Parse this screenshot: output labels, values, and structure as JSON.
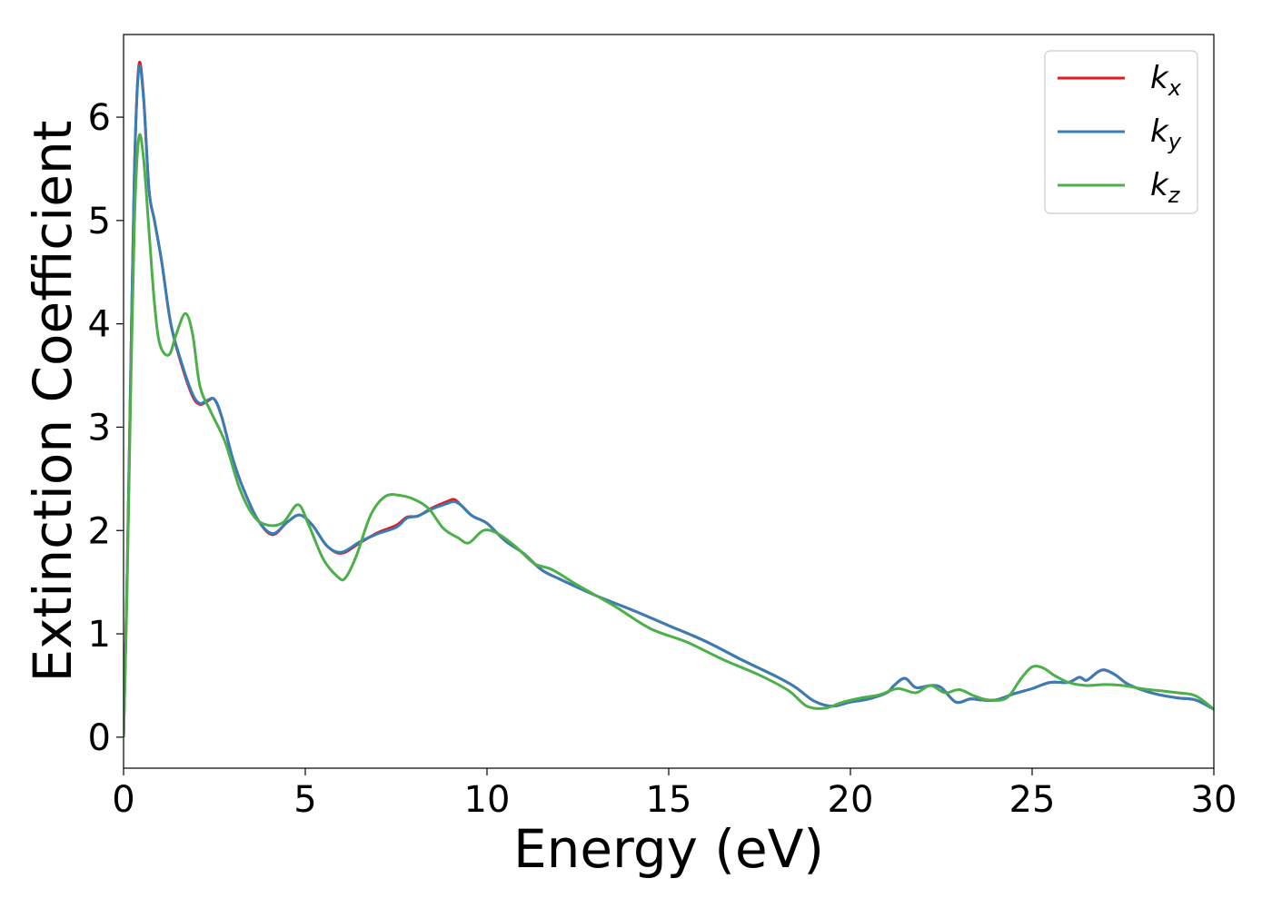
{
  "chart_data": {
    "type": "line",
    "title": "",
    "xlabel": "Energy (eV)",
    "ylabel": "Extinction Coefficient",
    "xlim": [
      0,
      30
    ],
    "ylim": [
      -0.3,
      6.8
    ],
    "xticks": [
      0,
      5,
      10,
      15,
      20,
      25,
      30
    ],
    "yticks": [
      0,
      1,
      2,
      3,
      4,
      5,
      6
    ],
    "grid": false,
    "legend_position": "top-right",
    "series": [
      {
        "name": "k_x",
        "legend_base": "k",
        "legend_sub": "x",
        "color": "#e41a1c",
        "x": [
          0,
          0.1,
          0.2,
          0.3,
          0.42,
          0.55,
          0.7,
          0.85,
          1.05,
          1.3,
          1.6,
          1.9,
          2.1,
          2.3,
          2.5,
          2.7,
          3.0,
          3.3,
          3.7,
          4.1,
          4.5,
          4.85,
          5.2,
          5.6,
          6.0,
          6.5,
          7.0,
          7.5,
          7.8,
          8.1,
          8.5,
          8.9,
          9.1,
          9.3,
          9.6,
          10.0,
          10.5,
          11.0,
          11.5,
          12.0,
          13.0,
          14.0,
          15.0,
          16.0,
          17.0,
          18.0,
          18.5,
          19.0,
          19.5,
          20.0,
          20.5,
          21.0,
          21.2,
          21.5,
          21.8,
          22.2,
          22.5,
          22.9,
          23.3,
          23.6,
          24.0,
          24.5,
          25.0,
          25.5,
          26.0,
          26.3,
          26.5,
          26.8,
          27.0,
          27.3,
          27.6,
          28.0,
          28.5,
          29.0,
          29.5,
          30.0
        ],
        "values": [
          0.0,
          1.6,
          3.6,
          5.5,
          6.5,
          6.2,
          5.3,
          5.0,
          4.6,
          4.0,
          3.6,
          3.3,
          3.22,
          3.25,
          3.27,
          3.1,
          2.7,
          2.4,
          2.1,
          1.96,
          2.08,
          2.15,
          2.05,
          1.85,
          1.78,
          1.88,
          1.98,
          2.05,
          2.13,
          2.14,
          2.22,
          2.28,
          2.3,
          2.24,
          2.14,
          2.07,
          1.9,
          1.78,
          1.62,
          1.53,
          1.37,
          1.23,
          1.08,
          0.93,
          0.75,
          0.58,
          0.48,
          0.35,
          0.3,
          0.34,
          0.37,
          0.43,
          0.5,
          0.57,
          0.48,
          0.5,
          0.48,
          0.34,
          0.37,
          0.36,
          0.36,
          0.42,
          0.47,
          0.53,
          0.53,
          0.58,
          0.55,
          0.63,
          0.65,
          0.6,
          0.52,
          0.46,
          0.41,
          0.38,
          0.36,
          0.27
        ]
      },
      {
        "name": "k_y",
        "legend_base": "k",
        "legend_sub": "y",
        "color": "#377eb8",
        "x": [
          0,
          0.1,
          0.2,
          0.3,
          0.42,
          0.55,
          0.7,
          0.85,
          1.05,
          1.3,
          1.6,
          1.9,
          2.1,
          2.3,
          2.5,
          2.7,
          3.0,
          3.3,
          3.7,
          4.1,
          4.5,
          4.85,
          5.2,
          5.6,
          6.0,
          6.5,
          7.0,
          7.5,
          7.8,
          8.1,
          8.5,
          8.9,
          9.1,
          9.3,
          9.6,
          10.0,
          10.5,
          11.0,
          11.5,
          12.0,
          13.0,
          14.0,
          15.0,
          16.0,
          17.0,
          18.0,
          18.5,
          19.0,
          19.5,
          20.0,
          20.5,
          21.0,
          21.2,
          21.5,
          21.8,
          22.2,
          22.5,
          22.9,
          23.3,
          23.6,
          24.0,
          24.5,
          25.0,
          25.5,
          26.0,
          26.3,
          26.5,
          26.8,
          27.0,
          27.3,
          27.6,
          28.0,
          28.5,
          29.0,
          29.5,
          30.0
        ],
        "values": [
          0.0,
          1.6,
          3.6,
          5.5,
          6.47,
          6.18,
          5.3,
          5.0,
          4.6,
          4.0,
          3.62,
          3.32,
          3.23,
          3.26,
          3.27,
          3.1,
          2.7,
          2.4,
          2.1,
          1.97,
          2.08,
          2.15,
          2.05,
          1.85,
          1.79,
          1.89,
          1.97,
          2.03,
          2.12,
          2.14,
          2.21,
          2.26,
          2.28,
          2.24,
          2.14,
          2.07,
          1.9,
          1.78,
          1.62,
          1.53,
          1.37,
          1.23,
          1.08,
          0.93,
          0.75,
          0.58,
          0.48,
          0.35,
          0.3,
          0.34,
          0.37,
          0.43,
          0.5,
          0.57,
          0.48,
          0.5,
          0.48,
          0.34,
          0.37,
          0.36,
          0.36,
          0.42,
          0.47,
          0.53,
          0.53,
          0.58,
          0.55,
          0.63,
          0.65,
          0.6,
          0.52,
          0.46,
          0.41,
          0.38,
          0.36,
          0.27
        ]
      },
      {
        "name": "k_z",
        "legend_base": "k",
        "legend_sub": "z",
        "color": "#4daf4a",
        "x": [
          0,
          0.1,
          0.2,
          0.3,
          0.42,
          0.55,
          0.7,
          0.85,
          1.0,
          1.25,
          1.45,
          1.7,
          1.9,
          2.1,
          2.4,
          2.8,
          3.2,
          3.6,
          4.0,
          4.4,
          4.8,
          5.1,
          5.5,
          5.9,
          6.1,
          6.4,
          6.8,
          7.2,
          7.6,
          8.0,
          8.4,
          8.8,
          9.2,
          9.5,
          9.9,
          10.3,
          10.8,
          11.3,
          11.8,
          12.5,
          13.5,
          14.5,
          15.5,
          16.5,
          17.5,
          18.3,
          18.8,
          19.3,
          19.8,
          20.3,
          20.8,
          21.3,
          21.8,
          22.2,
          22.6,
          23.0,
          23.4,
          23.8,
          24.3,
          24.7,
          25.0,
          25.3,
          25.6,
          26.0,
          26.5,
          27.0,
          27.5,
          28.0,
          28.5,
          29.0,
          29.5,
          30.0
        ],
        "values": [
          0.0,
          1.5,
          3.4,
          5.0,
          5.8,
          5.6,
          4.9,
          4.2,
          3.8,
          3.7,
          3.9,
          4.1,
          3.9,
          3.4,
          3.15,
          2.85,
          2.4,
          2.13,
          2.05,
          2.08,
          2.25,
          2.05,
          1.72,
          1.55,
          1.54,
          1.75,
          2.15,
          2.33,
          2.34,
          2.3,
          2.21,
          2.02,
          1.93,
          1.88,
          2.0,
          1.97,
          1.84,
          1.68,
          1.62,
          1.47,
          1.27,
          1.05,
          0.92,
          0.75,
          0.6,
          0.45,
          0.3,
          0.28,
          0.34,
          0.38,
          0.41,
          0.47,
          0.43,
          0.5,
          0.43,
          0.46,
          0.4,
          0.36,
          0.38,
          0.57,
          0.68,
          0.67,
          0.6,
          0.53,
          0.5,
          0.51,
          0.5,
          0.47,
          0.45,
          0.43,
          0.4,
          0.27
        ]
      }
    ]
  }
}
